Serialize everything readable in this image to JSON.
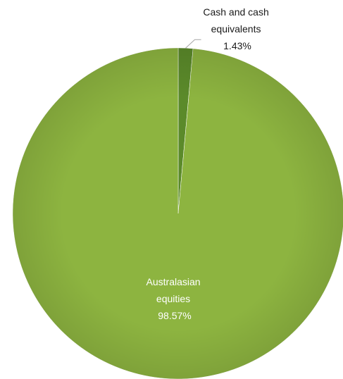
{
  "chart_data": {
    "type": "pie",
    "title": "",
    "slices": [
      {
        "label_lines": [
          "Cash and cash",
          "equivalents"
        ],
        "value": 1.43,
        "value_label": "1.43%",
        "color": "#5b8a2a"
      },
      {
        "label_lines": [
          "Australasian",
          "equities"
        ],
        "value": 98.57,
        "value_label": "98.57%",
        "color": "#8db440"
      }
    ],
    "legend": "none",
    "colors": {
      "leader_line": "#a6a6a6",
      "outside_label_text": "#1a1a1a",
      "inside_label_text": "#ffffff"
    }
  }
}
